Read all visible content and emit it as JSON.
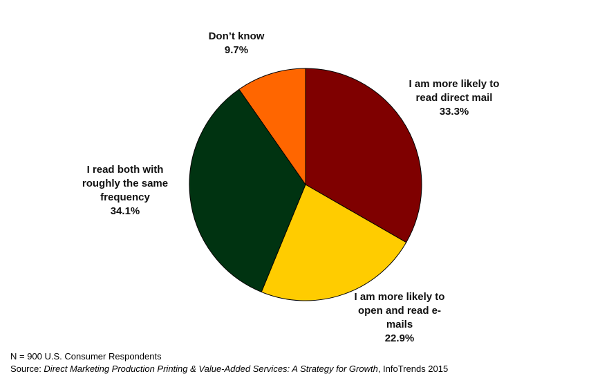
{
  "chart_data": {
    "type": "pie",
    "slices": [
      {
        "label_lines": [
          "I am more likely to",
          "read direct mail"
        ],
        "value": 33.3,
        "value_label": "33.3%",
        "color": "#7f0000"
      },
      {
        "label_lines": [
          "I am more likely to",
          "open and read e-",
          "mails"
        ],
        "value": 22.9,
        "value_label": "22.9%",
        "color": "#ffcc00"
      },
      {
        "label_lines": [
          "I read both with",
          "roughly the same",
          "frequency"
        ],
        "value": 34.1,
        "value_label": "34.1%",
        "color": "#003311"
      },
      {
        "label_lines": [
          "Don’t know"
        ],
        "value": 9.7,
        "value_label": "9.7%",
        "color": "#ff6600"
      }
    ],
    "start_angle": "12 o'clock",
    "direction": "clockwise",
    "legend": "none"
  },
  "footnotes": {
    "respondents": "N = 900 U.S. Consumer Respondents",
    "source_prefix": "Source: ",
    "source_title": "Direct Marketing Production Printing & Value-Added Services: A Strategy for Growth",
    "source_suffix": ", InfoTrends 2015"
  }
}
